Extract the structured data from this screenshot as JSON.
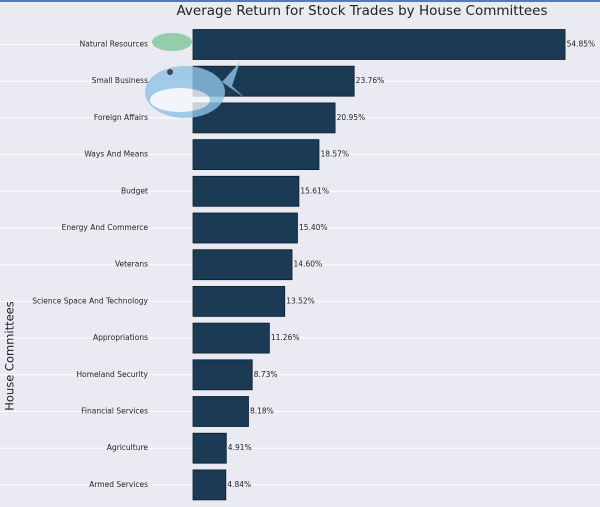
{
  "chart_data": {
    "type": "barh",
    "title": "Average Return for Stock Trades by House Committees",
    "y_label": "House Committees",
    "categories": [
      "Natural Resources",
      "Small Business",
      "Foreign Affairs",
      "Ways And Means",
      "Budget",
      "Energy And Commerce",
      "Veterans",
      "Science Space And Technology",
      "Appropriations",
      "Homeland Security",
      "Financial Services",
      "Agriculture",
      "Armed Services"
    ],
    "values": [
      54.85,
      23.76,
      20.95,
      18.57,
      15.61,
      15.4,
      14.6,
      13.52,
      11.26,
      8.73,
      8.18,
      4.91,
      4.84
    ],
    "value_labels": [
      "54.85%",
      "23.76%",
      "20.95%",
      "18.57%",
      "15.61%",
      "15.40%",
      "14.60%",
      "13.52%",
      "11.26%",
      "8.73%",
      "8.18%",
      "4.91%",
      "4.84%"
    ],
    "color": "#1b3a54",
    "xlim": [
      0,
      60
    ]
  }
}
